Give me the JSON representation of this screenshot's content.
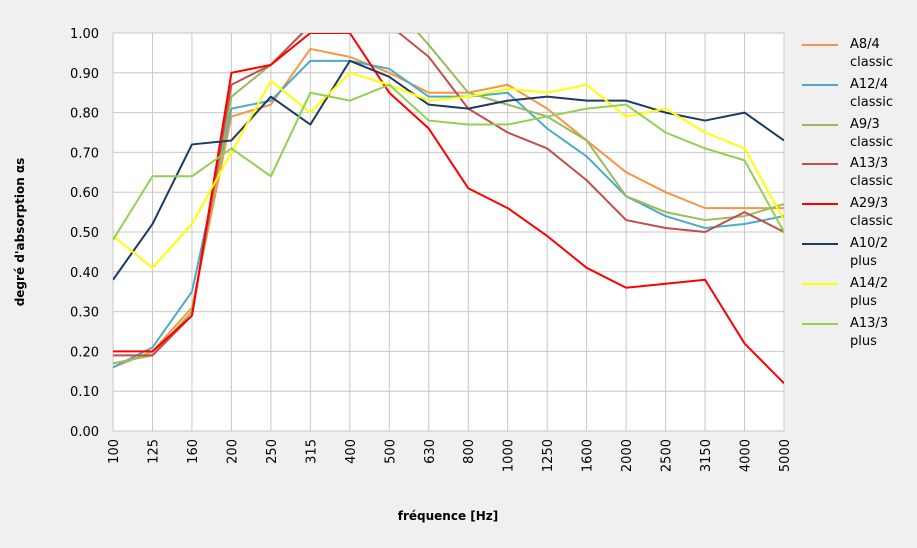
{
  "chart_data": {
    "type": "line",
    "y_label": "degré d'absorption αs",
    "x_label": "fréquence [Hz]",
    "categories": [
      "100",
      "125",
      "160",
      "200",
      "250",
      "315",
      "400",
      "500",
      "630",
      "800",
      "1000",
      "1250",
      "1600",
      "2000",
      "2500",
      "3150",
      "4000",
      "5000"
    ],
    "ylim": [
      0,
      1
    ],
    "yticks": [
      {
        "value": 0,
        "label": "0.00"
      },
      {
        "value": 0.1,
        "label": "0.10"
      },
      {
        "value": 0.2,
        "label": "0.20"
      },
      {
        "value": 0.3,
        "label": "0.30"
      },
      {
        "value": 0.4,
        "label": "0.40"
      },
      {
        "value": 0.5,
        "label": "0.50"
      },
      {
        "value": 0.6,
        "label": "0.60"
      },
      {
        "value": 0.7,
        "label": "0.70"
      },
      {
        "value": 0.8,
        "label": "0.80"
      },
      {
        "value": 0.9,
        "label": "0.90"
      },
      {
        "value": 1,
        "label": "1.00"
      }
    ],
    "grid": true,
    "legend": "right",
    "series": [
      {
        "name": "A8/4 classic",
        "color": "#f79646",
        "values": [
          0.16,
          0.2,
          0.31,
          0.79,
          0.82,
          0.96,
          0.94,
          0.9,
          0.85,
          0.85,
          0.87,
          0.81,
          0.73,
          0.65,
          0.6,
          0.56,
          0.56,
          0.56
        ]
      },
      {
        "name": "A12/4 classic",
        "color": "#4bacc6",
        "values": [
          0.16,
          0.21,
          0.35,
          0.81,
          0.83,
          0.93,
          0.93,
          0.91,
          0.84,
          0.84,
          0.85,
          0.76,
          0.69,
          0.59,
          0.54,
          0.51,
          0.52,
          0.54
        ]
      },
      {
        "name": "A9/3 classic",
        "color": "#9bbb59",
        "values": [
          0.17,
          0.19,
          0.3,
          0.84,
          0.92,
          1.02,
          1.05,
          1.08,
          0.97,
          0.85,
          0.82,
          0.79,
          0.73,
          0.59,
          0.55,
          0.53,
          0.54,
          0.57
        ]
      },
      {
        "name": "A13/3 classic",
        "color": "#c0504d",
        "values": [
          0.19,
          0.19,
          0.29,
          0.87,
          0.92,
          1.02,
          1.06,
          1.02,
          0.94,
          0.81,
          0.75,
          0.71,
          0.63,
          0.53,
          0.51,
          0.5,
          0.55,
          0.5
        ]
      },
      {
        "name": "A29/3 classic",
        "color": "#ff0000",
        "values": [
          0.2,
          0.2,
          0.29,
          0.9,
          0.92,
          1.0,
          1.0,
          0.85,
          0.76,
          0.61,
          0.56,
          0.49,
          0.41,
          0.36,
          0.37,
          0.38,
          0.22,
          0.12
        ]
      },
      {
        "name": "A10/2 plus",
        "color": "#1f3864",
        "values": [
          0.38,
          0.52,
          0.72,
          0.73,
          0.84,
          0.77,
          0.93,
          0.89,
          0.82,
          0.81,
          0.83,
          0.84,
          0.83,
          0.83,
          0.8,
          0.78,
          0.8,
          0.73
        ]
      },
      {
        "name": "A14/2 plus",
        "color": "#ffff00",
        "values": [
          0.49,
          0.41,
          0.52,
          0.7,
          0.88,
          0.8,
          0.9,
          0.87,
          0.83,
          0.84,
          0.86,
          0.85,
          0.87,
          0.79,
          0.81,
          0.75,
          0.71,
          0.53
        ]
      },
      {
        "name": "A13/3 plus",
        "color": "#92d050",
        "values": [
          0.48,
          0.64,
          0.64,
          0.71,
          0.64,
          0.85,
          0.83,
          0.87,
          0.78,
          0.77,
          0.77,
          0.79,
          0.81,
          0.82,
          0.75,
          0.71,
          0.68,
          0.5
        ]
      }
    ]
  }
}
